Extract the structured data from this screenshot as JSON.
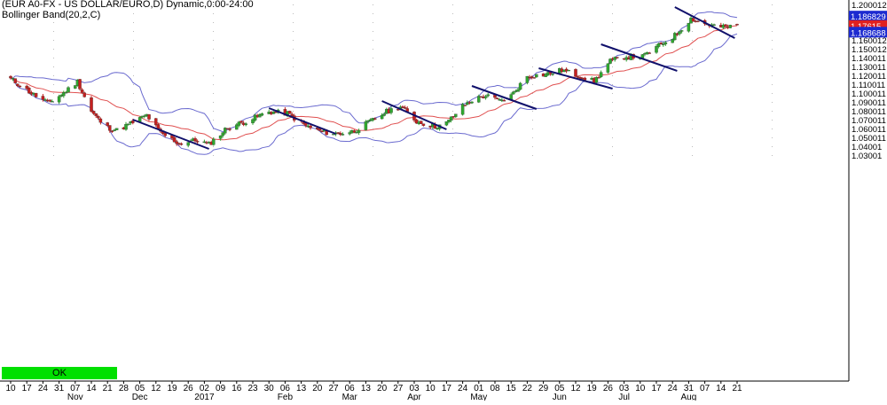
{
  "header": {
    "instrument": "(EUR A0-FX - US DOLLAR/EURO,D) Dynamic,0:00-24:00",
    "indicator": "Bollinger Band(20,2,C)"
  },
  "status": {
    "label": "OK"
  },
  "colors": {
    "bull": "#2fa82f",
    "bear": "#c62020",
    "upper_band": "#6a6acf",
    "middle_band": "#e05050",
    "trendline": "#10106b",
    "last_price_bg": "#e02020",
    "band_label_bg": "#1c2ad0",
    "status_bg": "#00e000"
  },
  "chart_data": {
    "type": "candlestick",
    "title": "(EUR A0-FX - US DOLLAR/EURO,D) Dynamic,0:00-24:00",
    "indicator": "Bollinger Band(20,2,C)",
    "ylim": [
      1.025,
      1.2
    ],
    "y_ticks": [
      "1.200012",
      "1.190012",
      "1.180012",
      "1.170012",
      "1.160012",
      "1.150012",
      "1.140011",
      "1.130011",
      "1.120011",
      "1.110011",
      "1.100011",
      "1.090011",
      "1.080011",
      "1.070011",
      "1.060011",
      "1.050011",
      "1.04001",
      "1.03001"
    ],
    "price_labels": {
      "upper_band": "1.186829",
      "last": "1.17615",
      "lower_band": "1.168688"
    },
    "x_tick_labels": [
      "10",
      "17",
      "24",
      "31",
      "07",
      "14",
      "21",
      "28",
      "05",
      "12",
      "19",
      "26",
      "02",
      "09",
      "16",
      "23",
      "30",
      "06",
      "13",
      "20",
      "27",
      "06",
      "13",
      "20",
      "27",
      "03",
      "10",
      "17",
      "24",
      "01",
      "08",
      "15",
      "22",
      "29",
      "05",
      "12",
      "19",
      "26",
      "03",
      "10",
      "17",
      "24",
      "31",
      "07",
      "14",
      "21"
    ],
    "month_labels": [
      "Nov",
      "Dec",
      "2017",
      "Feb",
      "Mar",
      "Apr",
      "May",
      "Jun",
      "Jul",
      "Aug"
    ],
    "close_anchors": [
      {
        "date": "2016-10-10",
        "value": 1.116
      },
      {
        "date": "2016-10-20",
        "value": 1.098
      },
      {
        "date": "2016-10-26",
        "value": 1.089
      },
      {
        "date": "2016-11-01",
        "value": 1.098
      },
      {
        "date": "2016-11-08",
        "value": 1.113
      },
      {
        "date": "2016-11-14",
        "value": 1.079
      },
      {
        "date": "2016-11-20",
        "value": 1.062
      },
      {
        "date": "2016-11-25",
        "value": 1.058
      },
      {
        "date": "2016-12-02",
        "value": 1.067
      },
      {
        "date": "2016-12-08",
        "value": 1.075
      },
      {
        "date": "2016-12-14",
        "value": 1.055
      },
      {
        "date": "2016-12-22",
        "value": 1.043
      },
      {
        "date": "2016-12-30",
        "value": 1.047
      },
      {
        "date": "2017-01-04",
        "value": 1.042
      },
      {
        "date": "2017-01-12",
        "value": 1.061
      },
      {
        "date": "2017-01-20",
        "value": 1.068
      },
      {
        "date": "2017-01-30",
        "value": 1.079
      },
      {
        "date": "2017-02-07",
        "value": 1.077
      },
      {
        "date": "2017-02-15",
        "value": 1.063
      },
      {
        "date": "2017-02-22",
        "value": 1.056
      },
      {
        "date": "2017-03-01",
        "value": 1.054
      },
      {
        "date": "2017-03-08",
        "value": 1.057
      },
      {
        "date": "2017-03-15",
        "value": 1.068
      },
      {
        "date": "2017-03-22",
        "value": 1.079
      },
      {
        "date": "2017-03-28",
        "value": 1.085
      },
      {
        "date": "2017-04-04",
        "value": 1.068
      },
      {
        "date": "2017-04-12",
        "value": 1.062
      },
      {
        "date": "2017-04-17",
        "value": 1.066
      },
      {
        "date": "2017-04-24",
        "value": 1.085
      },
      {
        "date": "2017-04-28",
        "value": 1.092
      },
      {
        "date": "2017-05-04",
        "value": 1.097
      },
      {
        "date": "2017-05-10",
        "value": 1.091
      },
      {
        "date": "2017-05-15",
        "value": 1.097
      },
      {
        "date": "2017-05-22",
        "value": 1.119
      },
      {
        "date": "2017-05-30",
        "value": 1.121
      },
      {
        "date": "2017-06-06",
        "value": 1.126
      },
      {
        "date": "2017-06-13",
        "value": 1.12
      },
      {
        "date": "2017-06-20",
        "value": 1.113
      },
      {
        "date": "2017-06-27",
        "value": 1.136
      },
      {
        "date": "2017-07-03",
        "value": 1.141
      },
      {
        "date": "2017-07-11",
        "value": 1.141
      },
      {
        "date": "2017-07-18",
        "value": 1.153
      },
      {
        "date": "2017-07-25",
        "value": 1.165
      },
      {
        "date": "2017-08-01",
        "value": 1.184
      },
      {
        "date": "2017-08-07",
        "value": 1.178
      },
      {
        "date": "2017-08-15",
        "value": 1.174
      },
      {
        "date": "2017-08-21",
        "value": 1.176
      }
    ],
    "trendlines": [
      {
        "start": {
          "date": "2016-12-02",
          "value": 1.07
        },
        "end": {
          "date": "2017-01-04",
          "value": 1.037
        }
      },
      {
        "start": {
          "date": "2017-01-30",
          "value": 1.083
        },
        "end": {
          "date": "2017-02-28",
          "value": 1.054
        }
      },
      {
        "start": {
          "date": "2017-03-20",
          "value": 1.091
        },
        "end": {
          "date": "2017-04-17",
          "value": 1.059
        }
      },
      {
        "start": {
          "date": "2017-04-28",
          "value": 1.108
        },
        "end": {
          "date": "2017-05-26",
          "value": 1.082
        }
      },
      {
        "start": {
          "date": "2017-05-27",
          "value": 1.128
        },
        "end": {
          "date": "2017-06-28",
          "value": 1.105
        }
      },
      {
        "start": {
          "date": "2017-06-23",
          "value": 1.155
        },
        "end": {
          "date": "2017-07-26",
          "value": 1.125
        }
      },
      {
        "start": {
          "date": "2017-07-25",
          "value": 1.197
        },
        "end": {
          "date": "2017-08-20",
          "value": 1.162
        }
      }
    ]
  }
}
